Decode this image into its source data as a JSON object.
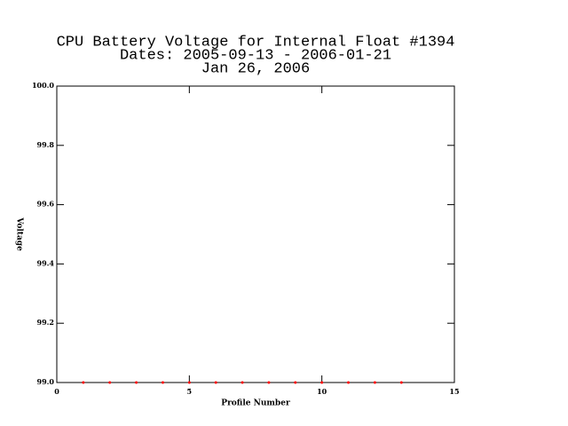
{
  "chart_data": {
    "type": "scatter",
    "title": "CPU Battery Voltage for Internal Float #1394",
    "subtitle": "Dates:  2005-09-13 -  2006-01-21",
    "date": "Jan 26, 2006",
    "x_label": "Profile Number",
    "y_label": "Voltage",
    "x": [
      1,
      2,
      3,
      4,
      5,
      6,
      7,
      8,
      9,
      10,
      11,
      12,
      13
    ],
    "values": [
      99,
      99,
      99,
      99,
      99,
      99,
      99,
      99,
      99,
      99,
      99,
      99,
      99
    ],
    "color": "#ff0000",
    "xlim": [
      0,
      15
    ],
    "xticks": [
      0,
      5,
      10,
      15
    ],
    "ylim": [
      99,
      100
    ],
    "yticks": [
      {
        "value": 99,
        "label": "99.0"
      },
      99.2,
      99.4,
      99.6,
      99.8,
      {
        "value": 100,
        "label": "100.0"
      }
    ]
  }
}
